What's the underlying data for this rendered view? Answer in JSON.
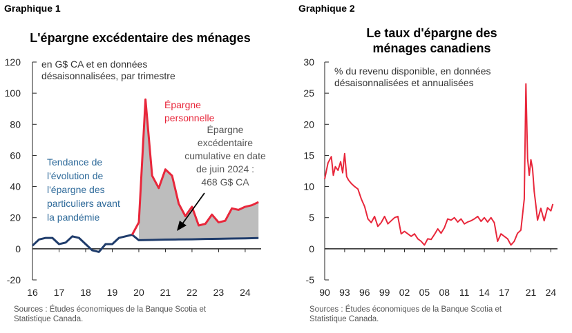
{
  "panels": [
    {
      "label": "Graphique 1",
      "title": "L'épargne excédentaire des ménages",
      "subtitle": [
        "en G$ CA et en données",
        "désaisonnalisées, par trimestre"
      ],
      "sources": [
        "Sources : Études économiques de la Banque Scotia et",
        "Statistique Canada."
      ],
      "annotations": {
        "red": [
          "Épargne",
          "personnelle"
        ],
        "gray": [
          "Épargne",
          "excédentaire",
          "cumulative en date",
          "de juin 2024 :",
          "468 G$ CA"
        ],
        "blue": [
          "Tendance de",
          "l'évolution de",
          "l'épargne des",
          "particuliers avant",
          "la pandémie"
        ]
      }
    },
    {
      "label": "Graphique 2",
      "title": [
        "Le taux d'épargne des",
        "ménages canadiens"
      ],
      "subtitle": [
        "% du revenu disponible, en données",
        "désaisonnalisées et annualisées"
      ],
      "sources": [
        "Sources : Études économiques de la Banque Scotia et",
        "Statistique Canada."
      ]
    }
  ],
  "colors": {
    "red": "#e8273b",
    "navy": "#1f3c6b",
    "gray_fill": "#bdbdbd",
    "blue_text": "#2e6a9a"
  },
  "chart_data": [
    {
      "type": "area",
      "ylim": [
        -20,
        120
      ],
      "yticks": [
        -20,
        0,
        20,
        40,
        60,
        80,
        100,
        120
      ],
      "xlim": [
        2016,
        2024.6
      ],
      "xticks": [
        2016,
        2017,
        2018,
        2019,
        2020,
        2021,
        2022,
        2023,
        2024
      ],
      "xtick_labels": [
        "16",
        "17",
        "18",
        "19",
        "20",
        "21",
        "22",
        "23",
        "24"
      ],
      "series": [
        {
          "name": "Épargne personnelle",
          "x": [
            2016.0,
            2016.25,
            2016.5,
            2016.75,
            2017.0,
            2017.25,
            2017.5,
            2017.75,
            2018.0,
            2018.25,
            2018.5,
            2018.75,
            2019.0,
            2019.25,
            2019.5,
            2019.75,
            2020.0,
            2020.25,
            2020.5,
            2020.75,
            2021.0,
            2021.25,
            2021.5,
            2021.75,
            2022.0,
            2022.25,
            2022.5,
            2022.75,
            2023.0,
            2023.25,
            2023.5,
            2023.75,
            2024.0,
            2024.25,
            2024.5
          ],
          "values": [
            2,
            6,
            7,
            7,
            3,
            4,
            8,
            7,
            3,
            -1,
            -2,
            3,
            3,
            7,
            8,
            9,
            17,
            96,
            47,
            39,
            51,
            47,
            29,
            21,
            27,
            15,
            16,
            22,
            17,
            18,
            26,
            25,
            27,
            28,
            30
          ]
        },
        {
          "name": "Tendance de l'évolution de l'épargne des particuliers avant la pandémie",
          "x": [
            2016.0,
            2016.25,
            2016.5,
            2016.75,
            2017.0,
            2017.25,
            2017.5,
            2017.75,
            2018.0,
            2018.25,
            2018.5,
            2018.75,
            2019.0,
            2019.25,
            2019.5,
            2019.75,
            2020.0,
            2020.5,
            2021.0,
            2021.5,
            2022.0,
            2022.5,
            2023.0,
            2023.5,
            2024.0,
            2024.5
          ],
          "values": [
            2,
            6,
            7,
            7,
            3,
            4,
            8,
            7,
            3,
            -1,
            -2,
            3,
            3,
            7,
            8,
            9,
            5.5,
            5.7,
            5.9,
            6.0,
            6.1,
            6.3,
            6.4,
            6.6,
            6.7,
            6.9
          ]
        }
      ]
    },
    {
      "type": "line",
      "ylim": [
        -5,
        30
      ],
      "yticks": [
        -5,
        0,
        5,
        10,
        15,
        20,
        25,
        30
      ],
      "xlim": [
        1990,
        2025
      ],
      "xticks": [
        1990,
        1993,
        1996,
        1999,
        2002,
        2005,
        2008,
        2011,
        2014,
        2017,
        2021,
        2024
      ],
      "xtick_labels": [
        "90",
        "93",
        "96",
        "99",
        "02",
        "05",
        "08",
        "11",
        "14",
        "17",
        "21",
        "24"
      ],
      "series": [
        {
          "name": "Taux d'épargne des ménages",
          "x": [
            1990.0,
            1990.5,
            1991.0,
            1991.3,
            1991.6,
            1992.0,
            1992.4,
            1992.7,
            1993.0,
            1993.3,
            1993.6,
            1994.0,
            1994.5,
            1995.0,
            1995.5,
            1996.0,
            1996.5,
            1997.0,
            1997.5,
            1998.0,
            1998.5,
            1999.0,
            1999.5,
            2000.0,
            2000.5,
            2001.0,
            2001.5,
            2002.0,
            2002.5,
            2003.0,
            2003.5,
            2004.0,
            2004.5,
            2005.0,
            2005.5,
            2006.0,
            2006.5,
            2007.0,
            2007.5,
            2008.0,
            2008.5,
            2009.0,
            2009.5,
            2010.0,
            2010.5,
            2011.0,
            2011.5,
            2012.0,
            2012.5,
            2013.0,
            2013.5,
            2014.0,
            2014.5,
            2015.0,
            2015.5,
            2016.0,
            2016.5,
            2017.0,
            2017.5,
            2018.0,
            2018.5,
            2019.0,
            2019.5,
            2020.0,
            2020.25,
            2020.5,
            2020.75,
            2021.0,
            2021.25,
            2021.5,
            2021.75,
            2022.0,
            2022.5,
            2023.0,
            2023.5,
            2024.0,
            2024.3
          ],
          "values": [
            11.2,
            13.8,
            14.8,
            11.8,
            13.2,
            12.6,
            14.0,
            12.2,
            15.3,
            11.6,
            11.0,
            10.5,
            10.0,
            9.6,
            8.0,
            6.8,
            4.8,
            4.2,
            5.2,
            3.6,
            4.2,
            5.2,
            4.0,
            4.5,
            5.0,
            5.2,
            2.4,
            2.8,
            2.4,
            2.0,
            2.4,
            1.6,
            1.2,
            0.6,
            1.6,
            1.5,
            2.3,
            3.2,
            2.5,
            3.4,
            4.8,
            4.6,
            5.0,
            4.3,
            4.8,
            4.0,
            4.3,
            4.5,
            4.8,
            5.2,
            4.4,
            5.0,
            4.3,
            5.0,
            4.2,
            1.2,
            2.4,
            2.0,
            1.6,
            0.6,
            1.2,
            2.5,
            3.0,
            8.0,
            26.5,
            14.5,
            11.8,
            14.3,
            12.9,
            9.2,
            7.0,
            4.6,
            6.5,
            4.5,
            6.6,
            6.1,
            7.2
          ]
        }
      ]
    }
  ]
}
